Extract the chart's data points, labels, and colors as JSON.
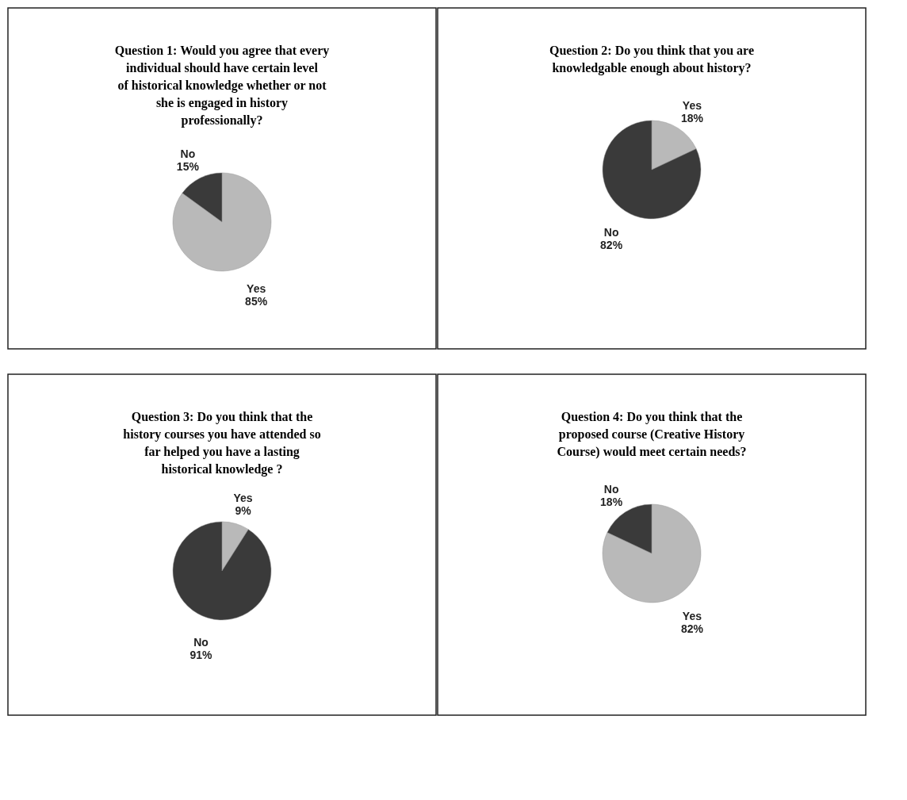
{
  "chart_data": [
    {
      "type": "pie",
      "title": "Question 1: Would you agree that every individual should have certain level of historical knowledge whether or not she is engaged in history professionally?",
      "categories": [
        "Yes",
        "No"
      ],
      "values": [
        85,
        15
      ],
      "value_labels": [
        "85%",
        "15%"
      ],
      "colors": [
        "#b9b9b9",
        "#3a3a3a"
      ]
    },
    {
      "type": "pie",
      "title": "Question 2: Do you think that you are knowledgable enough about history?",
      "categories": [
        "Yes",
        "No"
      ],
      "values": [
        18,
        82
      ],
      "value_labels": [
        "18%",
        "82%"
      ],
      "colors": [
        "#b9b9b9",
        "#3a3a3a"
      ]
    },
    {
      "type": "pie",
      "title": "Question 3: Do you think that the history courses you have attended so far helped you have a lasting historical knowledge ?",
      "categories": [
        "Yes",
        "No"
      ],
      "values": [
        9,
        91
      ],
      "value_labels": [
        "9%",
        "91%"
      ],
      "colors": [
        "#b9b9b9",
        "#3a3a3a"
      ]
    },
    {
      "type": "pie",
      "title": "Question 4: Do you think that the proposed course (Creative History Course) would meet certain needs?",
      "categories": [
        "Yes",
        "No"
      ],
      "values": [
        82,
        18
      ],
      "value_labels": [
        "82%",
        "18%"
      ],
      "colors": [
        "#b9b9b9",
        "#3a3a3a"
      ]
    }
  ]
}
